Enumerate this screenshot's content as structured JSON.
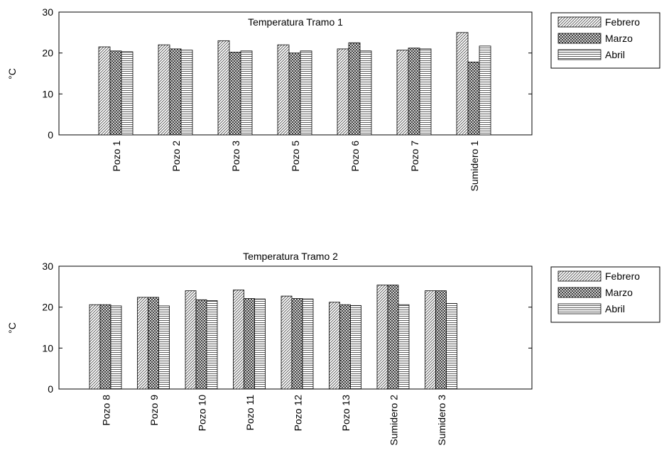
{
  "chart_data": [
    {
      "type": "bar",
      "title": "Temperatura Tramo 1",
      "ylabel": "°C",
      "xlabel": "",
      "ylim": [
        0,
        30
      ],
      "yticks": [
        0,
        10,
        20,
        30
      ],
      "legend_position": "outside-right",
      "categories": [
        "Pozo 1",
        "Pozo 2",
        "Pozo 3",
        "Pozo 5",
        "Pozo 6",
        "Pozo 7",
        "Sumidero 1"
      ],
      "series": [
        {
          "name": "Febrero",
          "pattern": "diagonal",
          "values": [
            21.5,
            22,
            23,
            22,
            21,
            20.7,
            25
          ]
        },
        {
          "name": "Marzo",
          "pattern": "crosshatch",
          "values": [
            20.5,
            21,
            20.2,
            20,
            22.5,
            21.2,
            17.8
          ]
        },
        {
          "name": "Abril",
          "pattern": "horizontal",
          "values": [
            20.3,
            20.7,
            20.5,
            20.5,
            20.5,
            21,
            21.7
          ]
        }
      ]
    },
    {
      "type": "bar",
      "title": "Temperatura Tramo 2",
      "ylabel": "°C",
      "xlabel": "",
      "ylim": [
        0,
        30
      ],
      "yticks": [
        0,
        10,
        20,
        30
      ],
      "legend_position": "outside-right",
      "categories": [
        "Pozo 8",
        "Pozo 9",
        "Pozo 10",
        "Pozo 11",
        "Pozo 12",
        "Pozo 13",
        "Sumidero 2",
        "Sumidero 3"
      ],
      "series": [
        {
          "name": "Febrero",
          "pattern": "diagonal",
          "values": [
            20.6,
            22.4,
            24,
            24.2,
            22.7,
            21.2,
            25.4,
            24
          ]
        },
        {
          "name": "Marzo",
          "pattern": "crosshatch",
          "values": [
            20.6,
            22.4,
            21.8,
            22.1,
            22.1,
            20.6,
            25.4,
            24
          ]
        },
        {
          "name": "Abril",
          "pattern": "horizontal",
          "values": [
            20.3,
            20.3,
            21.6,
            22,
            22,
            20.4,
            20.6,
            20.9
          ]
        }
      ]
    }
  ]
}
